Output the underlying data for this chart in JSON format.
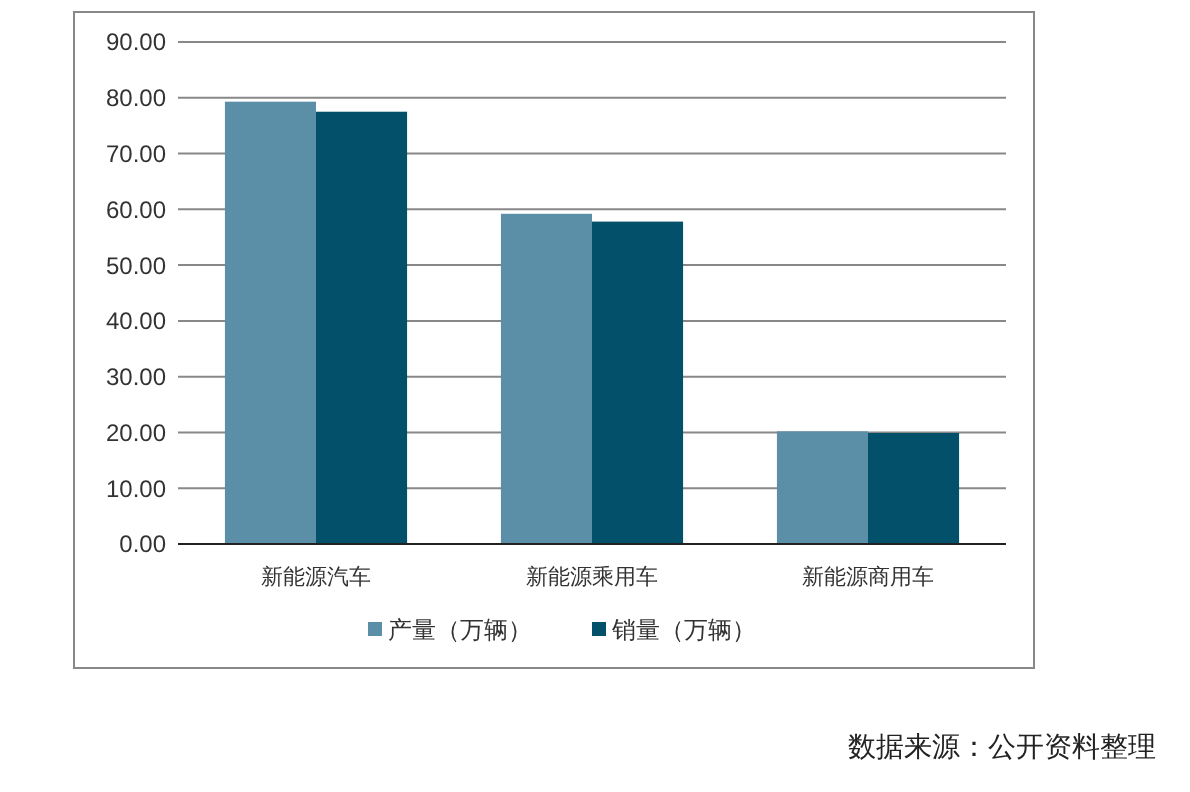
{
  "chart_data": {
    "type": "bar",
    "categories": [
      "新能源汽车",
      "新能源乘用车",
      "新能源商用车"
    ],
    "series": [
      {
        "name": "产量（万辆）",
        "color": "#5b8fa8",
        "values": [
          79.3,
          59.2,
          20.2
        ]
      },
      {
        "name": "销量（万辆）",
        "color": "#03506b",
        "values": [
          77.5,
          57.8,
          19.9
        ]
      }
    ],
    "ylim": [
      0,
      90
    ],
    "yticks": [
      {
        "value": 0,
        "label": "0.00"
      },
      {
        "value": 10,
        "label": "10.00"
      },
      {
        "value": 20,
        "label": "20.00"
      },
      {
        "value": 30,
        "label": "30.00"
      },
      {
        "value": 40,
        "label": "40.00"
      },
      {
        "value": 50,
        "label": "50.00"
      },
      {
        "value": 60,
        "label": "60.00"
      },
      {
        "value": 70,
        "label": "70.00"
      },
      {
        "value": 80,
        "label": "80.00"
      },
      {
        "value": 90,
        "label": "90.00"
      }
    ],
    "grid": "y",
    "legend": "bottom",
    "annotations": [
      "数据来源：公开资料整理"
    ]
  }
}
